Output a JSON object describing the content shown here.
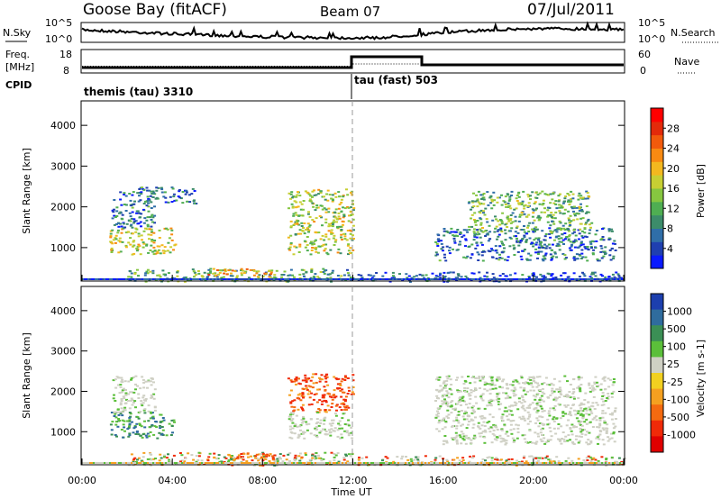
{
  "header": {
    "station": "Goose Bay (fitACF)",
    "beam": "Beam 07",
    "date": "07/Jul/2011"
  },
  "top_panels": {
    "nsky_label": "N.Sky",
    "nsky_ticks": [
      "10^5",
      "10^0"
    ],
    "nsearch_label": "N.Search",
    "nsearch_ticks": [
      "10^5",
      "10^0"
    ],
    "freq_label_1": "Freq.",
    "freq_label_2": "[MHz]",
    "freq_ticks": [
      "18",
      "8"
    ],
    "nave_label": "Nave",
    "nave_ticks": [
      "60",
      "0"
    ],
    "cpid_label": "CPID",
    "cpid_segments": [
      {
        "label": "themis (tau) 3310",
        "start_hour": 0
      },
      {
        "label": "tau (fast) 503",
        "start_hour": 12
      }
    ]
  },
  "chart_data": [
    {
      "type": "heatmap",
      "panel": "power",
      "ylabel": "Slant Range [km]",
      "yticks": [
        1000,
        2000,
        3000,
        4000
      ],
      "ylim": [
        180,
        4600
      ],
      "xlim_hours": [
        0,
        24
      ],
      "xticks": [
        "00:00",
        "04:00",
        "08:00",
        "12:00",
        "16:00",
        "20:00",
        "00:00"
      ],
      "xlabel": "Time UT",
      "colorbar": {
        "label": "Power [dB]",
        "ticks": [
          "4",
          "8",
          "12",
          "16",
          "20",
          "24",
          "28"
        ],
        "colors": [
          "#0a1aff",
          "#1f3fb0",
          "#2f6ea8",
          "#3c8c6a",
          "#4fae52",
          "#86c640",
          "#c7cf33",
          "#f3b81f",
          "#f88a12",
          "#f25a0c",
          "#e32a0a",
          "#ff0000"
        ]
      },
      "echo_regions": [
        {
          "t0": 1.2,
          "t1": 4.1,
          "r0": 850,
          "r1": 1500,
          "level": 0.55
        },
        {
          "t0": 1.3,
          "t1": 3.2,
          "r0": 1500,
          "r1": 2400,
          "level": 0.2
        },
        {
          "t0": 2.4,
          "t1": 5.0,
          "r0": 2100,
          "r1": 2500,
          "level": 0.2
        },
        {
          "t0": 2.0,
          "t1": 12.0,
          "r0": 180,
          "r1": 500,
          "level": 0.35
        },
        {
          "t0": 5.5,
          "t1": 8.5,
          "r0": 300,
          "r1": 500,
          "level": 0.7
        },
        {
          "t0": 9.1,
          "t1": 12.0,
          "r0": 850,
          "r1": 2450,
          "level": 0.5
        },
        {
          "t0": 12.2,
          "t1": 24.0,
          "r0": 180,
          "r1": 420,
          "level": 0.12
        },
        {
          "t0": 15.6,
          "t1": 23.6,
          "r0": 700,
          "r1": 1500,
          "level": 0.2
        },
        {
          "t0": 17.0,
          "t1": 22.6,
          "r0": 1400,
          "r1": 2400,
          "level": 0.38
        }
      ]
    },
    {
      "type": "heatmap",
      "panel": "velocity",
      "ylabel": "Slant Range [km]",
      "yticks": [
        1000,
        2000,
        3000,
        4000
      ],
      "ylim": [
        180,
        4600
      ],
      "xlim_hours": [
        0,
        24
      ],
      "xticks": [
        "00:00",
        "04:00",
        "08:00",
        "12:00",
        "16:00",
        "20:00",
        "00:00"
      ],
      "xlabel": "Time UT",
      "colorbar": {
        "label": "Velocity [m s-1]",
        "ticks": [
          "1000",
          "500",
          "100",
          "25",
          "-25",
          "-100",
          "-500",
          "-1000"
        ],
        "colors": [
          "#1c3fae",
          "#2f6c9e",
          "#3b8f55",
          "#5bbf3a",
          "#cfd0c4",
          "#f2d020",
          "#f5a020",
          "#f46a10",
          "#f02a08",
          "#e00000"
        ]
      },
      "echo_regions": [
        {
          "t0": 1.2,
          "t1": 4.1,
          "r0": 850,
          "r1": 1500,
          "vel": "green"
        },
        {
          "t0": 1.3,
          "t1": 3.2,
          "r0": 1500,
          "r1": 2400,
          "vel": "gray"
        },
        {
          "t0": 2.0,
          "t1": 12.0,
          "r0": 180,
          "r1": 500,
          "vel": "mixed"
        },
        {
          "t0": 5.5,
          "t1": 8.5,
          "r0": 300,
          "r1": 500,
          "vel": "orange"
        },
        {
          "t0": 9.1,
          "t1": 12.0,
          "r0": 1500,
          "r1": 2450,
          "vel": "orange"
        },
        {
          "t0": 9.1,
          "t1": 12.0,
          "r0": 850,
          "r1": 1500,
          "vel": "gray"
        },
        {
          "t0": 12.2,
          "t1": 24.0,
          "r0": 180,
          "r1": 420,
          "vel": "mixed"
        },
        {
          "t0": 15.6,
          "t1": 23.6,
          "r0": 700,
          "r1": 2400,
          "vel": "gray"
        }
      ]
    }
  ]
}
